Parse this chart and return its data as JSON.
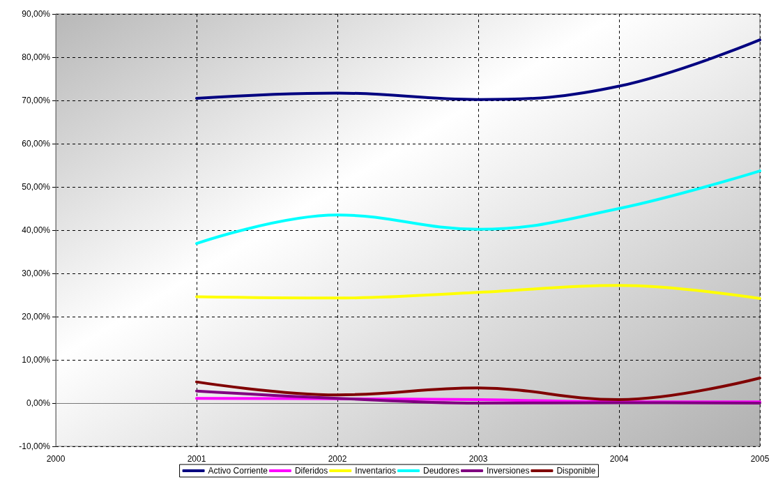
{
  "chart_data": {
    "type": "line",
    "x": [
      2001,
      2002,
      2003,
      2004,
      2005
    ],
    "xlim": [
      2000,
      2005
    ],
    "xticks": [
      2000,
      2001,
      2002,
      2003,
      2004,
      2005
    ],
    "ylim": [
      -10,
      90
    ],
    "yticks": [
      {
        "value": -10,
        "label": "-10,00%"
      },
      {
        "value": 0,
        "label": "0,00%"
      },
      {
        "value": 10,
        "label": "10,00%"
      },
      {
        "value": 20,
        "label": "20,00%"
      },
      {
        "value": 30,
        "label": "30,00%"
      },
      {
        "value": 40,
        "label": "40,00%"
      },
      {
        "value": 50,
        "label": "50,00%"
      },
      {
        "value": 60,
        "label": "60,00%"
      },
      {
        "value": 70,
        "label": "70,00%"
      },
      {
        "value": 80,
        "label": "80,00%"
      },
      {
        "value": 90,
        "label": "90,00%"
      }
    ],
    "grid": true,
    "legend": "bottom",
    "marker": "none",
    "line_style": "solid",
    "series": [
      {
        "name": "Activo Corriente",
        "color": "#000080",
        "values": [
          70.5,
          71.7,
          70.2,
          73.3,
          84.0
        ]
      },
      {
        "name": "Diferidos",
        "color": "#ff00ff",
        "values": [
          1.1,
          1.0,
          0.8,
          0.3,
          0.3
        ]
      },
      {
        "name": "Inventarios",
        "color": "#ffff00",
        "values": [
          24.6,
          24.3,
          25.6,
          27.2,
          24.2
        ]
      },
      {
        "name": "Deudores",
        "color": "#00ffff",
        "values": [
          36.9,
          43.5,
          40.2,
          45.0,
          53.7
        ]
      },
      {
        "name": "Inversiones",
        "color": "#800080",
        "values": [
          2.8,
          1.1,
          0.0,
          0.1,
          0.0
        ]
      },
      {
        "name": "Disponible",
        "color": "#800000",
        "values": [
          4.9,
          1.9,
          3.5,
          0.8,
          5.8
        ]
      }
    ]
  }
}
